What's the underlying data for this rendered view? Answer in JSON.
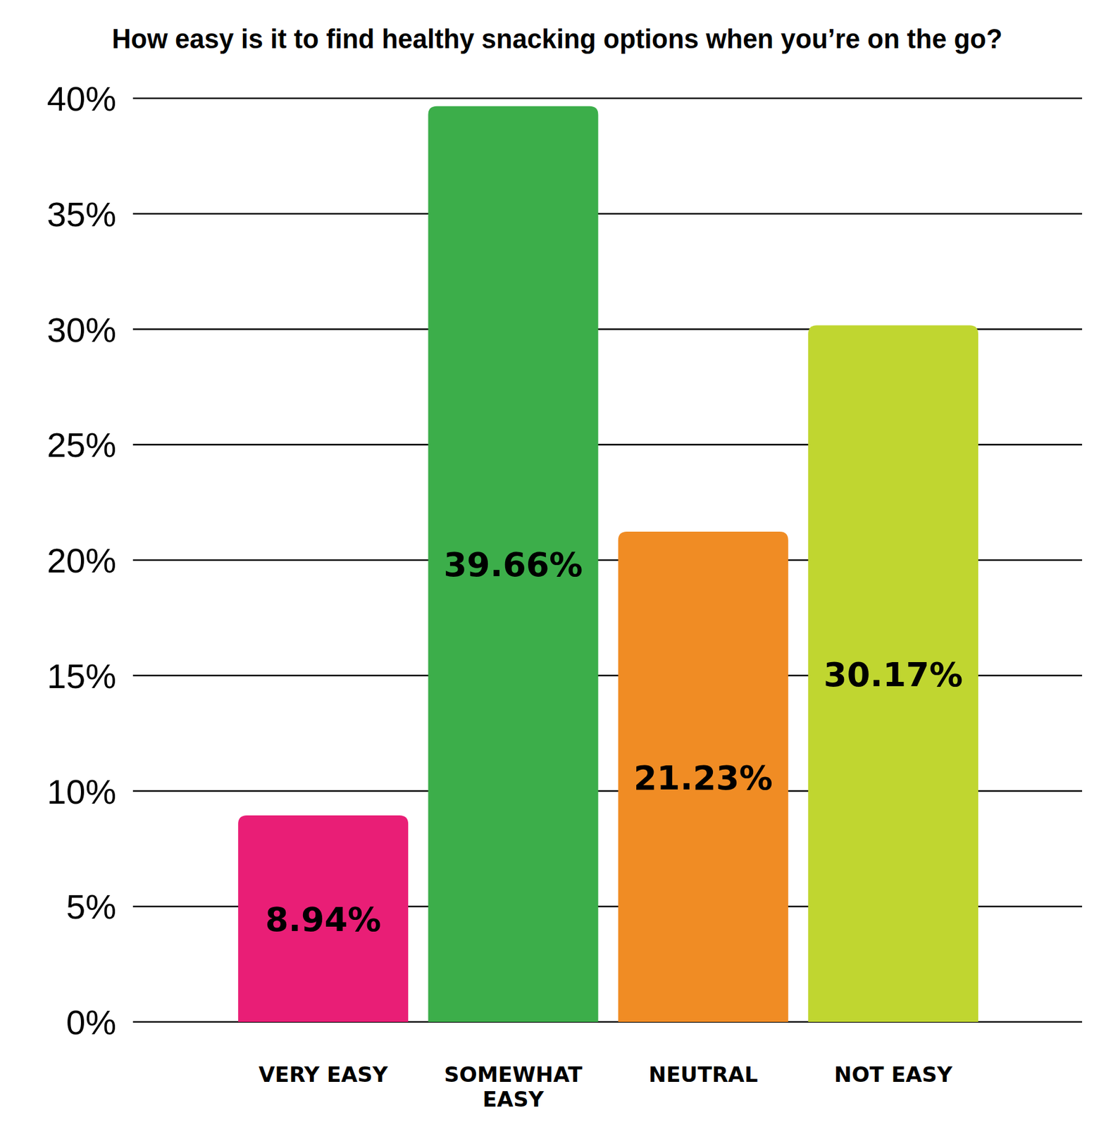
{
  "chart_data": {
    "type": "bar",
    "title": "How easy is it to find healthy snacking options when you’re on the go?",
    "categories": [
      "VERY EASY",
      "SOMEWHAT EASY",
      "NEUTRAL",
      "NOT EASY"
    ],
    "values": [
      8.94,
      39.66,
      21.23,
      30.17
    ],
    "value_labels": [
      "8.94%",
      "39.66%",
      "21.23%",
      "30.17%"
    ],
    "colors": [
      "#e91e76",
      "#3cae4a",
      "#f08c24",
      "#c0d630"
    ],
    "ylim": [
      0,
      40
    ],
    "yticks": [
      {
        "value": 0,
        "label": "0%"
      },
      {
        "value": 5,
        "label": "5%"
      },
      {
        "value": 10,
        "label": "10%"
      },
      {
        "value": 15,
        "label": "15%"
      },
      {
        "value": 20,
        "label": "20%"
      },
      {
        "value": 25,
        "label": "25%"
      },
      {
        "value": 30,
        "label": "30%"
      },
      {
        "value": 35,
        "label": "35%"
      },
      {
        "value": 40,
        "label": "40%"
      }
    ],
    "grid": true,
    "data_labels": true
  }
}
